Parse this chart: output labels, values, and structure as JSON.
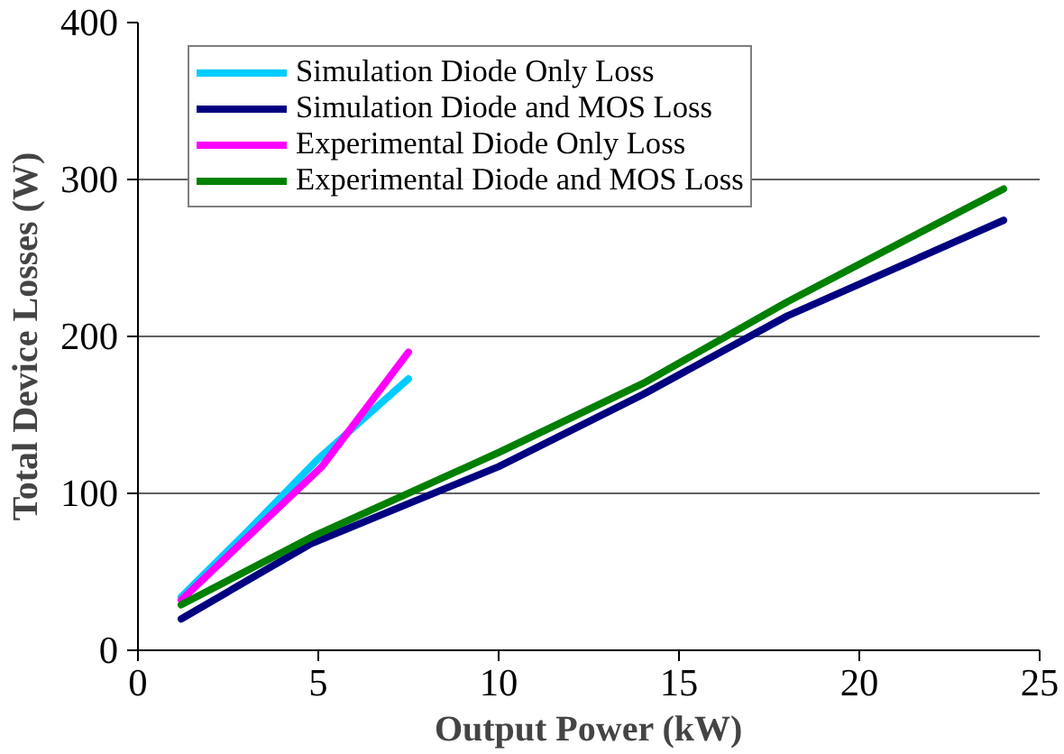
{
  "chart_data": {
    "type": "line",
    "xlabel": "Output Power (kW)",
    "ylabel": "Total Device Losses (W)",
    "xlim": [
      0,
      25
    ],
    "ylim": [
      0,
      400
    ],
    "xticks": [
      0,
      5,
      10,
      15,
      20,
      25
    ],
    "yticks": [
      0,
      100,
      200,
      300,
      400
    ],
    "grid": "y",
    "legend": "top",
    "line_style": "solid",
    "marker": "none",
    "series": [
      {
        "name": "Simulation Diode Only Loss",
        "color": "#00ccff",
        "x": [
          1.2,
          3,
          5,
          7.5
        ],
        "values": [
          34,
          75,
          122,
          173
        ]
      },
      {
        "name": "Simulation Diode and MOS Loss",
        "color": "#000080",
        "x": [
          1.2,
          4.8,
          10,
          14,
          18,
          24
        ],
        "values": [
          20,
          68,
          117,
          163,
          213,
          274
        ]
      },
      {
        "name": "Experimental Diode Only Loss",
        "color": "#ff00ff",
        "x": [
          1.2,
          2.85,
          5.1,
          7.5
        ],
        "values": [
          32,
          68,
          117,
          190
        ]
      },
      {
        "name": "Experimental Diode and MOS Loss",
        "color": "#008000",
        "x": [
          1.2,
          4.8,
          10,
          14,
          18,
          24
        ],
        "values": [
          29,
          72,
          126,
          170,
          222,
          294
        ]
      }
    ]
  }
}
